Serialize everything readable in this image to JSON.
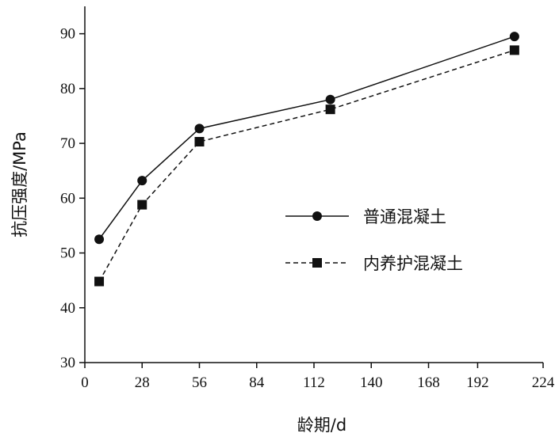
{
  "chart_data": {
    "type": "line",
    "xlabel": "龄期/d",
    "ylabel": "抗压强度/MPa",
    "xlim": [
      0,
      224
    ],
    "ylim": [
      30,
      95
    ],
    "xticks": [
      0,
      28,
      56,
      84,
      112,
      140,
      168,
      192,
      224
    ],
    "xtick_labels": [
      "0",
      "28",
      "56",
      "84",
      "112",
      "140",
      "168",
      "192",
      "224"
    ],
    "yticks": [
      30,
      40,
      50,
      60,
      70,
      80,
      90
    ],
    "ytick_labels": [
      "30",
      "40",
      "50",
      "60",
      "70",
      "80",
      "90"
    ],
    "grid": false,
    "legend_position": "center-right",
    "series": [
      {
        "name": "普通混凝土",
        "marker": "circle",
        "line_style": "solid",
        "x": [
          7,
          28,
          56,
          120,
          210
        ],
        "y": [
          52.5,
          63.2,
          72.7,
          78.0,
          89.5
        ]
      },
      {
        "name": "内养护混凝土",
        "marker": "square",
        "line_style": "dashed",
        "x": [
          7,
          28,
          56,
          120,
          210
        ],
        "y": [
          44.8,
          58.8,
          70.3,
          76.2,
          87.0
        ]
      }
    ]
  }
}
